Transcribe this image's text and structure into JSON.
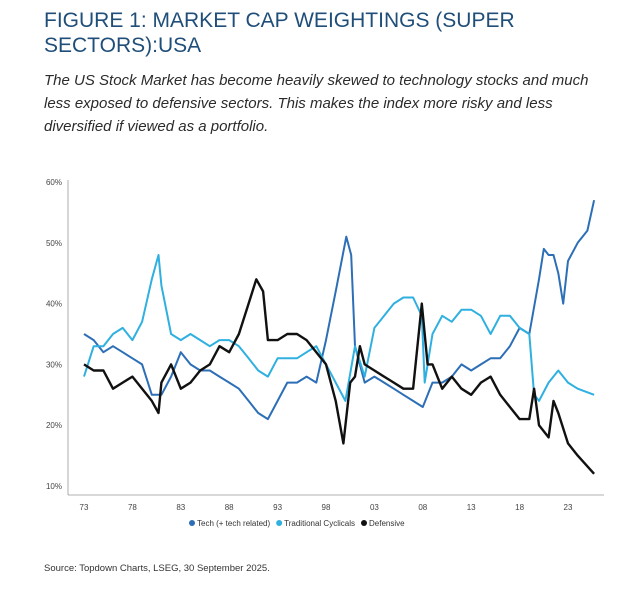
{
  "header": {
    "title": "FIGURE 1: MARKET CAP WEIGHTINGS (SUPER SECTORS):USA",
    "subtitle": "The US Stock Market has become heavily skewed to technology stocks and much less exposed to defensive sectors. This makes the index more risky and less diversified if viewed as a portfolio."
  },
  "source": "Source: Topdown Charts, LSEG, 30 September 2025.",
  "chart_data": {
    "type": "line",
    "title": "",
    "xlabel": "",
    "ylabel": "",
    "ylim": [
      10,
      60
    ],
    "xlim": [
      1972,
      2030
    ],
    "y_ticks": [
      "10%",
      "20%",
      "30%",
      "40%",
      "50%",
      "60%"
    ],
    "y_tick_values": [
      10,
      20,
      30,
      40,
      50,
      60
    ],
    "x_ticks": [
      "73",
      "78",
      "83",
      "88",
      "93",
      "98",
      "03",
      "08",
      "13",
      "18",
      "23"
    ],
    "x_tick_values": [
      1973,
      1978,
      1983,
      1988,
      1993,
      1998,
      2003,
      2008,
      2013,
      2018,
      2023
    ],
    "grid": false,
    "legend_placement": "bottom",
    "series": [
      {
        "name": "Tech (+ tech related)",
        "color": "#2d6fb6",
        "x": [
          1973,
          1974,
          1975,
          1976,
          1977,
          1978,
          1979,
          1980,
          1981,
          1982,
          1983,
          1984,
          1985,
          1986,
          1987,
          1988,
          1989,
          1990,
          1991,
          1992,
          1993,
          1994,
          1995,
          1996,
          1997,
          1998,
          1999,
          2000.1,
          2000.6,
          2001,
          2002,
          2003,
          2004,
          2005,
          2006,
          2007,
          2008,
          2009,
          2010,
          2011,
          2012,
          2013,
          2014,
          2015,
          2016,
          2017,
          2018,
          2019,
          2020,
          2020.5,
          2021,
          2021.5,
          2022,
          2022.5,
          2023,
          2024,
          2025,
          2025.7
        ],
        "values": [
          35,
          34,
          32,
          33,
          32,
          31,
          30,
          25,
          25,
          28,
          32,
          30,
          29,
          29,
          28,
          27,
          26,
          24,
          22,
          21,
          24,
          27,
          27,
          28,
          27,
          34,
          42,
          51,
          48,
          33,
          27,
          28,
          27,
          26,
          25,
          24,
          23,
          27,
          27,
          28,
          30,
          29,
          30,
          31,
          31,
          33,
          36,
          35,
          44,
          49,
          48,
          48,
          45,
          40,
          47,
          50,
          52,
          57
        ]
      },
      {
        "name": "Traditional Cyclicals",
        "color": "#2fb0e0",
        "x": [
          1973,
          1974,
          1975,
          1976,
          1977,
          1978,
          1979,
          1980,
          1980.7,
          1981,
          1982,
          1983,
          1984,
          1985,
          1986,
          1987,
          1988,
          1989,
          1990,
          1991,
          1992,
          1993,
          1994,
          1995,
          1996,
          1997,
          1998,
          1999,
          2000,
          2001,
          2002,
          2003,
          2004,
          2005,
          2006,
          2007,
          2007.9,
          2008.2,
          2009,
          2010,
          2011,
          2012,
          2013,
          2014,
          2015,
          2016,
          2017,
          2018,
          2019,
          2019.5,
          2020,
          2021,
          2022,
          2023,
          2024,
          2025.7
        ],
        "values": [
          28,
          33,
          33,
          35,
          36,
          34,
          37,
          44,
          48,
          43,
          35,
          34,
          35,
          34,
          33,
          34,
          34,
          33,
          31,
          29,
          28,
          31,
          31,
          31,
          32,
          33,
          30,
          27,
          24,
          33,
          28,
          36,
          38,
          40,
          41,
          41,
          38,
          27,
          35,
          38,
          37,
          39,
          39,
          38,
          35,
          38,
          38,
          36,
          35,
          25,
          24,
          27,
          29,
          27,
          26,
          25
        ]
      },
      {
        "name": "Defensive",
        "color": "#111111",
        "x": [
          1973,
          1974,
          1975,
          1976,
          1977,
          1978,
          1979,
          1980,
          1980.7,
          1981,
          1982,
          1983,
          1984,
          1985,
          1986,
          1987,
          1988,
          1989,
          1990,
          1990.8,
          1991.5,
          1992,
          1993,
          1994,
          1995,
          1996,
          1997,
          1998,
          1999,
          1999.8,
          2000.5,
          2001,
          2001.5,
          2002,
          2003,
          2004,
          2005,
          2006,
          2007,
          2007.9,
          2008.5,
          2009,
          2010,
          2011,
          2012,
          2013,
          2014,
          2015,
          2016,
          2017,
          2018,
          2019,
          2019.5,
          2020,
          2021,
          2021.5,
          2022,
          2023,
          2024,
          2025.7
        ],
        "values": [
          30,
          29,
          29,
          26,
          27,
          28,
          26,
          24,
          22,
          27,
          30,
          26,
          27,
          29,
          30,
          33,
          32,
          35,
          40,
          44,
          42,
          34,
          34,
          35,
          35,
          34,
          32,
          30,
          24,
          17,
          27,
          28,
          33,
          30,
          29,
          28,
          27,
          26,
          26,
          40,
          30,
          30,
          26,
          28,
          26,
          25,
          27,
          28,
          25,
          23,
          21,
          21,
          26,
          20,
          18,
          24,
          22,
          17,
          15,
          12
        ]
      }
    ]
  }
}
